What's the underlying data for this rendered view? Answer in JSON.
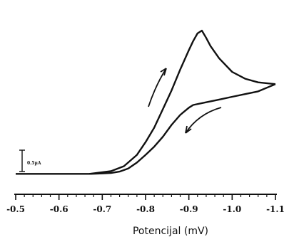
{
  "chart_data": {
    "type": "line",
    "title": "",
    "xlabel": "Potencijal (mV)",
    "ylabel": "",
    "x_axis_reversed": true,
    "xlim": [
      -0.5,
      -1.1
    ],
    "x_ticks": [
      -0.5,
      -0.6,
      -0.7,
      -0.8,
      -0.9,
      -1.0,
      -1.1
    ],
    "x_tick_labels": [
      "-0.5",
      "-0.6",
      "-0.7",
      "-0.8",
      "-0.9",
      "-1.0",
      "-1.1"
    ],
    "y_unit": "µA",
    "ylim": [
      -0.45,
      3.6
    ],
    "grid": false,
    "scale_bar": {
      "label": "0.5µA",
      "value": 0.5
    },
    "series": [
      {
        "direction": "forward",
        "x": [
          -0.5,
          -0.6,
          -0.67,
          -0.72,
          -0.75,
          -0.78,
          -0.8,
          -0.82,
          -0.84,
          -0.86,
          -0.88,
          -0.9,
          -0.91,
          -0.92,
          -0.93,
          -0.94,
          -0.95,
          -0.97,
          -1.0,
          -1.03,
          -1.06,
          -1.1
        ],
        "y": [
          0,
          0,
          0,
          0.06,
          0.17,
          0.42,
          0.7,
          1.02,
          1.43,
          1.84,
          2.3,
          2.73,
          2.93,
          3.1,
          3.16,
          3.0,
          2.82,
          2.55,
          2.25,
          2.1,
          2.02,
          1.98
        ]
      },
      {
        "direction": "reverse",
        "x": [
          -1.1,
          -1.06,
          -1.03,
          -1.0,
          -0.97,
          -0.94,
          -0.91,
          -0.9,
          -0.88,
          -0.86,
          -0.84,
          -0.82,
          -0.8,
          -0.78,
          -0.76,
          -0.74,
          -0.72,
          -0.7,
          -0.67
        ],
        "y": [
          1.98,
          1.82,
          1.76,
          1.7,
          1.64,
          1.58,
          1.52,
          1.46,
          1.3,
          1.08,
          0.82,
          0.6,
          0.42,
          0.25,
          0.12,
          0.05,
          0.02,
          0.01,
          0
        ]
      }
    ],
    "annotations": [
      {
        "type": "arrow",
        "meaning": "forward scan direction (upward)"
      },
      {
        "type": "arrow",
        "meaning": "reverse scan direction (downward)"
      }
    ]
  }
}
